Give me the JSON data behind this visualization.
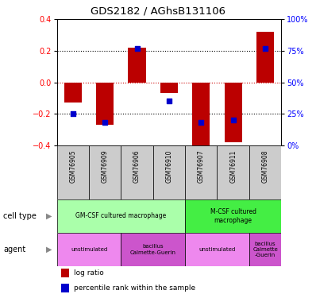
{
  "title": "GDS2182 / AGhsB131106",
  "samples": [
    "GSM76905",
    "GSM76909",
    "GSM76906",
    "GSM76910",
    "GSM76907",
    "GSM76911",
    "GSM76908"
  ],
  "log_ratios": [
    -0.13,
    -0.27,
    0.22,
    -0.07,
    -0.42,
    -0.38,
    0.32
  ],
  "percentile_ranks": [
    25,
    18,
    77,
    35,
    18,
    20,
    77
  ],
  "ylim": [
    -0.4,
    0.4
  ],
  "right_yticks": [
    0,
    25,
    50,
    75,
    100
  ],
  "right_yticklabels": [
    "0%",
    "25%",
    "50%",
    "75%",
    "100%"
  ],
  "left_yticks": [
    -0.4,
    -0.2,
    0.0,
    0.2,
    0.4
  ],
  "bar_color": "#bb0000",
  "dot_color": "#0000cc",
  "dotted_line_color": "#000000",
  "zero_line_color": "#cc0000",
  "cell_type_groups": [
    {
      "label": "GM-CSF cultured macrophage",
      "start": 0,
      "end": 4,
      "color": "#aaffaa"
    },
    {
      "label": "M-CSF cultured\nmacrophage",
      "start": 4,
      "end": 7,
      "color": "#44ee44"
    }
  ],
  "agent_groups": [
    {
      "label": "unstimulated",
      "start": 0,
      "end": 2,
      "color": "#ee88ee"
    },
    {
      "label": "bacillus\nCalmette-Guerin",
      "start": 2,
      "end": 4,
      "color": "#cc55cc"
    },
    {
      "label": "unstimulated",
      "start": 4,
      "end": 6,
      "color": "#ee88ee"
    },
    {
      "label": "bacillus\nCalmette\n-Guerin",
      "start": 6,
      "end": 7,
      "color": "#cc55cc"
    }
  ],
  "legend_items": [
    {
      "label": "log ratio",
      "color": "#bb0000"
    },
    {
      "label": "percentile rank within the sample",
      "color": "#0000cc"
    }
  ],
  "sample_bg": "#cccccc",
  "background_color": "#ffffff"
}
